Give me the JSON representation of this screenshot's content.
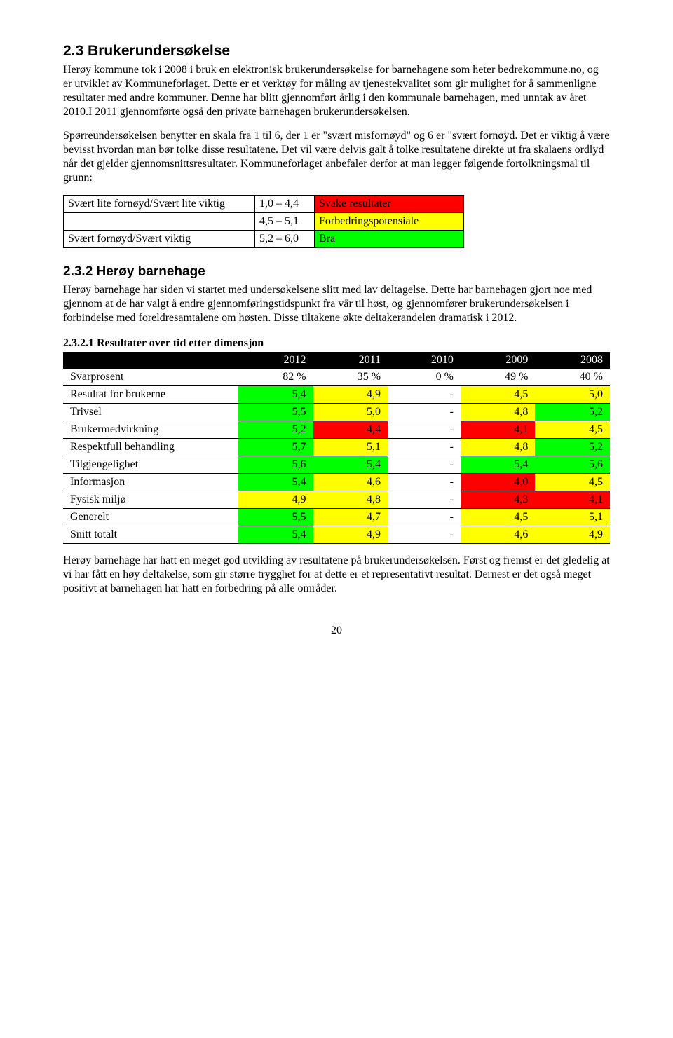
{
  "colors": {
    "red": "#ff0000",
    "yellow": "#ffff00",
    "green": "#00ff00",
    "black": "#000000",
    "white": "#ffffff"
  },
  "section": {
    "number_title": "2.3 Brukerundersøkelse",
    "p1": "Herøy kommune tok i 2008 i bruk en elektronisk brukerundersøkelse for barnehagene som heter bedrekommune.no, og er utviklet av Kommuneforlaget. Dette er et verktøy for måling av tjenestekvalitet som gir mulighet for å sammenligne resultater med andre kommuner. Denne har blitt gjennomført årlig i den kommunale barnehagen, med unntak av året 2010.I 2011 gjennomførte også den private barnehagen brukerundersøkelsen.",
    "p2": "Spørreundersøkelsen benytter en skala fra 1 til 6, der 1 er \"svært misfornøyd\" og 6 er \"svært fornøyd. Det er viktig å være bevisst hvordan man bør tolke disse resultatene.  Det vil være delvis galt å tolke resultatene direkte ut fra skalaens ordlyd når det gjelder gjennomsnittsresultater. Kommuneforlaget anbefaler derfor at man legger følgende fortolkningsmal til grunn:"
  },
  "legend": {
    "rows": [
      {
        "label": "Svært lite fornøyd/Svært lite viktig",
        "range": "1,0 – 4,4",
        "desc": "Svake resultater",
        "color": "red"
      },
      {
        "label": "",
        "range": "4,5 – 5,1",
        "desc": "Forbedringspotensiale",
        "color": "yellow"
      },
      {
        "label": "Svært fornøyd/Svært viktig",
        "range": "5,2 – 6,0",
        "desc": "Bra",
        "color": "green"
      }
    ]
  },
  "subsection": {
    "number_title": "2.3.2 Herøy barnehage",
    "p1": "Herøy barnehage har siden vi startet med undersøkelsene slitt med lav deltagelse. Dette har barnehagen gjort noe med gjennom at de har valgt å endre gjennomføringstidspunkt fra vår til høst, og gjennomfører brukerundersøkelsen i forbindelse med foreldresamtalene om høsten. Disse tiltakene økte deltakerandelen dramatisk i 2012."
  },
  "results": {
    "heading": "2.3.2.1 Resultater over tid etter dimensjon",
    "years": [
      "2012",
      "2011",
      "2010",
      "2009",
      "2008"
    ],
    "rows": [
      {
        "label": "Svarprosent",
        "cells": [
          {
            "v": "82 %",
            "c": null
          },
          {
            "v": "35 %",
            "c": null
          },
          {
            "v": "0 %",
            "c": null
          },
          {
            "v": "49 %",
            "c": null
          },
          {
            "v": "40 %",
            "c": null
          }
        ]
      },
      {
        "label": "Resultat for brukerne",
        "cells": [
          {
            "v": "5,4",
            "c": "green"
          },
          {
            "v": "4,9",
            "c": "yellow"
          },
          {
            "v": "-",
            "c": null
          },
          {
            "v": "4,5",
            "c": "yellow"
          },
          {
            "v": "5,0",
            "c": "yellow"
          }
        ]
      },
      {
        "label": "Trivsel",
        "cells": [
          {
            "v": "5,5",
            "c": "green"
          },
          {
            "v": "5,0",
            "c": "yellow"
          },
          {
            "v": "-",
            "c": null
          },
          {
            "v": "4,8",
            "c": "yellow"
          },
          {
            "v": "5,2",
            "c": "green"
          }
        ]
      },
      {
        "label": "Brukermedvirkning",
        "cells": [
          {
            "v": "5,2",
            "c": "green"
          },
          {
            "v": "4,4",
            "c": "red"
          },
          {
            "v": "-",
            "c": null
          },
          {
            "v": "4,1",
            "c": "red"
          },
          {
            "v": "4,5",
            "c": "yellow"
          }
        ]
      },
      {
        "label": "Respektfull behandling",
        "cells": [
          {
            "v": "5,7",
            "c": "green"
          },
          {
            "v": "5,1",
            "c": "yellow"
          },
          {
            "v": "-",
            "c": null
          },
          {
            "v": "4,8",
            "c": "yellow"
          },
          {
            "v": "5,2",
            "c": "green"
          }
        ]
      },
      {
        "label": "Tilgjengelighet",
        "cells": [
          {
            "v": "5,6",
            "c": "green"
          },
          {
            "v": "5,4",
            "c": "green"
          },
          {
            "v": "-",
            "c": null
          },
          {
            "v": "5,4",
            "c": "green"
          },
          {
            "v": "5,6",
            "c": "green"
          }
        ]
      },
      {
        "label": "Informasjon",
        "cells": [
          {
            "v": "5,4",
            "c": "green"
          },
          {
            "v": "4,6",
            "c": "yellow"
          },
          {
            "v": "-",
            "c": null
          },
          {
            "v": "4,0",
            "c": "red"
          },
          {
            "v": "4,5",
            "c": "yellow"
          }
        ]
      },
      {
        "label": "Fysisk miljø",
        "cells": [
          {
            "v": "4,9",
            "c": "yellow"
          },
          {
            "v": "4,8",
            "c": "yellow"
          },
          {
            "v": "-",
            "c": null
          },
          {
            "v": "4,3",
            "c": "red"
          },
          {
            "v": "4,1",
            "c": "red"
          }
        ]
      },
      {
        "label": "Generelt",
        "cells": [
          {
            "v": "5,5",
            "c": "green"
          },
          {
            "v": "4,7",
            "c": "yellow"
          },
          {
            "v": "-",
            "c": null
          },
          {
            "v": "4,5",
            "c": "yellow"
          },
          {
            "v": "5,1",
            "c": "yellow"
          }
        ]
      },
      {
        "label": "Snitt totalt",
        "cells": [
          {
            "v": "5,4",
            "c": "green"
          },
          {
            "v": "4,9",
            "c": "yellow"
          },
          {
            "v": "-",
            "c": null
          },
          {
            "v": "4,6",
            "c": "yellow"
          },
          {
            "v": "4,9",
            "c": "yellow"
          }
        ]
      }
    ]
  },
  "closing": {
    "p1": "Herøy barnehage har hatt en meget god utvikling av resultatene på brukerundersøkelsen. Først og fremst er det gledelig at vi har fått en høy deltakelse, som gir større trygghet for at dette er et representativt resultat.  Dernest er det også meget positivt at barnehagen har hatt en forbedring på alle områder."
  },
  "page_number": "20"
}
